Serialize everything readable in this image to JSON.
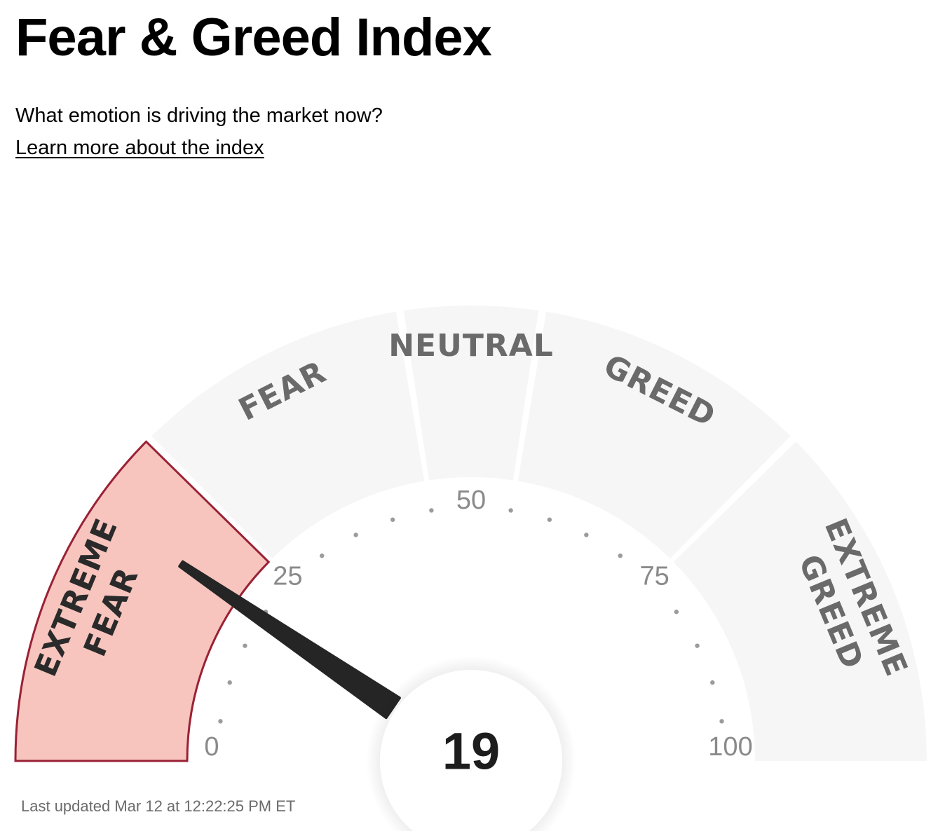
{
  "header": {
    "title": "Fear & Greed Index",
    "subtitle": "What emotion is driving the market now?",
    "learn_more": "Learn more about the index"
  },
  "gauge": {
    "value": 19,
    "value_label": "19",
    "active_segment": "extreme-fear",
    "segments": [
      {
        "id": "extreme-fear",
        "lines": [
          "EXTREME",
          "FEAR"
        ],
        "range": [
          0,
          25
        ],
        "fill": "#f7c5be",
        "stroke": "#9a2135"
      },
      {
        "id": "fear",
        "lines": [
          "FEAR"
        ],
        "range": [
          25,
          45
        ],
        "fill": "#f6f6f6"
      },
      {
        "id": "neutral",
        "lines": [
          "NEUTRAL"
        ],
        "range": [
          45,
          55
        ],
        "fill": "#f6f6f6"
      },
      {
        "id": "greed",
        "lines": [
          "GREED"
        ],
        "range": [
          55,
          75
        ],
        "fill": "#f6f6f6"
      },
      {
        "id": "extreme-greed",
        "lines": [
          "EXTREME",
          "GREED"
        ],
        "range": [
          75,
          100
        ],
        "fill": "#f6f6f6"
      }
    ],
    "tick_labels": [
      {
        "value": 0,
        "text": "0"
      },
      {
        "value": 25,
        "text": "25"
      },
      {
        "value": 50,
        "text": "50"
      },
      {
        "value": 75,
        "text": "75"
      },
      {
        "value": 100,
        "text": "100"
      }
    ]
  },
  "footer": {
    "last_updated": "Last updated Mar 12 at 12:22:25 PM ET"
  },
  "colors": {
    "needle": "#252525",
    "segment_inactive": "#f6f6f6",
    "segment_active_fill": "#f7c5be",
    "segment_active_stroke": "#9a2135",
    "dot": "#9b9b9b"
  }
}
